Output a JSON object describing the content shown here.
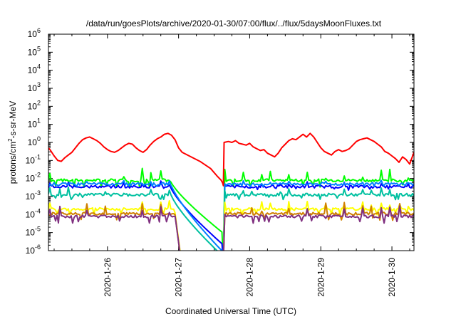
{
  "chart_data": {
    "type": "line",
    "title": "/data/run/goesPlots/archive/2020-01-30/07:00/flux/../flux/5daysMoonFluxes.txt",
    "xlabel": "Coordinated Universal Time (UTC)",
    "ylabel": {
      "pre": "protons/cm",
      "sup": "2",
      "post": "-s-sr-MeV"
    },
    "yscale": "log",
    "ylim_exponents": [
      -6,
      6
    ],
    "y_tick_exponents": [
      -6,
      -5,
      -4,
      -3,
      -2,
      -1,
      0,
      1,
      2,
      3,
      4,
      5,
      6
    ],
    "y_tick_base": "10",
    "xlim_days": [
      25.17,
      30.31
    ],
    "x_tick_labels": [
      {
        "day": 26,
        "label": "2020-1-26"
      },
      {
        "day": 27,
        "label": "2020-1-27"
      },
      {
        "day": 28,
        "label": "2020-1-28"
      },
      {
        "day": 29,
        "label": "2020-1-29"
      },
      {
        "day": 30,
        "label": "2020-1-30"
      }
    ],
    "grid": false,
    "legend": "none",
    "x_note": "x values are fractional days of January 2020 (UTC)",
    "series": [
      {
        "color": "#ff0000",
        "role": "red",
        "points": [
          [
            25.17,
            -0.3
          ],
          [
            25.2,
            -0.45
          ],
          [
            25.25,
            -0.75
          ],
          [
            25.3,
            -1.0
          ],
          [
            25.35,
            -1.05
          ],
          [
            25.4,
            -0.85
          ],
          [
            25.45,
            -0.7
          ],
          [
            25.5,
            -0.55
          ],
          [
            25.55,
            -0.3
          ],
          [
            25.6,
            -0.05
          ],
          [
            25.65,
            0.15
          ],
          [
            25.7,
            0.25
          ],
          [
            25.75,
            0.3
          ],
          [
            25.8,
            0.2
          ],
          [
            25.85,
            0.1
          ],
          [
            25.9,
            -0.05
          ],
          [
            25.95,
            -0.25
          ],
          [
            26.0,
            -0.4
          ],
          [
            26.05,
            -0.5
          ],
          [
            26.1,
            -0.55
          ],
          [
            26.15,
            -0.45
          ],
          [
            26.2,
            -0.3
          ],
          [
            26.25,
            -0.15
          ],
          [
            26.3,
            -0.05
          ],
          [
            26.35,
            -0.1
          ],
          [
            26.4,
            -0.3
          ],
          [
            26.45,
            -0.45
          ],
          [
            26.5,
            -0.55
          ],
          [
            26.55,
            -0.4
          ],
          [
            26.6,
            -0.15
          ],
          [
            26.65,
            0.05
          ],
          [
            26.7,
            0.2
          ],
          [
            26.75,
            0.3
          ],
          [
            26.8,
            0.45
          ],
          [
            26.85,
            0.5
          ],
          [
            26.9,
            0.4
          ],
          [
            26.95,
            0.15
          ],
          [
            27.0,
            -0.3
          ],
          [
            27.05,
            -0.55
          ],
          [
            27.15,
            -0.75
          ],
          [
            27.3,
            -1.05
          ],
          [
            27.45,
            -1.45
          ],
          [
            27.55,
            -1.9
          ],
          [
            27.6,
            -2.1
          ],
          [
            27.62,
            -2.25
          ],
          [
            27.63,
            -2.4
          ],
          [
            27.64,
            0.0
          ],
          [
            27.7,
            0.05
          ],
          [
            27.75,
            0.0
          ],
          [
            27.8,
            0.1
          ],
          [
            27.85,
            -0.05
          ],
          [
            27.9,
            -0.1
          ],
          [
            27.95,
            -0.15
          ],
          [
            28.0,
            -0.05
          ],
          [
            28.05,
            -0.25
          ],
          [
            28.1,
            -0.35
          ],
          [
            28.15,
            -0.45
          ],
          [
            28.2,
            -0.4
          ],
          [
            28.25,
            -0.6
          ],
          [
            28.3,
            -0.7
          ],
          [
            28.35,
            -0.8
          ],
          [
            28.4,
            -0.6
          ],
          [
            28.45,
            -0.3
          ],
          [
            28.5,
            -0.1
          ],
          [
            28.55,
            0.1
          ],
          [
            28.6,
            0.2
          ],
          [
            28.65,
            0.15
          ],
          [
            28.7,
            0.3
          ],
          [
            28.75,
            0.45
          ],
          [
            28.8,
            0.3
          ],
          [
            28.85,
            0.5
          ],
          [
            28.9,
            0.3
          ],
          [
            28.95,
            0.0
          ],
          [
            29.0,
            -0.3
          ],
          [
            29.05,
            -0.5
          ],
          [
            29.1,
            -0.6
          ],
          [
            29.15,
            -0.7
          ],
          [
            29.2,
            -0.5
          ],
          [
            29.25,
            -0.4
          ],
          [
            29.3,
            -0.5
          ],
          [
            29.35,
            -0.45
          ],
          [
            29.4,
            -0.35
          ],
          [
            29.45,
            -0.15
          ],
          [
            29.5,
            0.05
          ],
          [
            29.55,
            0.15
          ],
          [
            29.6,
            0.2
          ],
          [
            29.65,
            0.25
          ],
          [
            29.7,
            0.15
          ],
          [
            29.75,
            0.05
          ],
          [
            29.8,
            -0.1
          ],
          [
            29.85,
            -0.25
          ],
          [
            29.9,
            -0.5
          ],
          [
            29.95,
            -0.6
          ],
          [
            30.0,
            -0.75
          ],
          [
            30.05,
            -0.9
          ],
          [
            30.1,
            -1.1
          ],
          [
            30.15,
            -0.8
          ],
          [
            30.2,
            -0.95
          ],
          [
            30.25,
            -1.2
          ],
          [
            30.31,
            -0.55
          ]
        ]
      },
      {
        "color": "#00ff00",
        "role": "green",
        "base": -2.1,
        "decay_end": -5.0,
        "spike": 0.65
      },
      {
        "color": "#0000ff",
        "role": "blue",
        "base": -2.45,
        "decay_end": -5.65,
        "spike": 0.25
      },
      {
        "color": "#0080ff",
        "role": "lightblue",
        "base": -2.3,
        "decay_end": -6.05,
        "spike": 0.15
      },
      {
        "color": "#00c0a0",
        "role": "teal",
        "base": -2.9,
        "decay_end": -6.3,
        "spike": 0.4
      },
      {
        "color": "#ffff00",
        "role": "yellow",
        "base": -3.7,
        "decay_end": -6.5,
        "spike": 0.5
      },
      {
        "color": "#d08000",
        "role": "orange",
        "base": -3.95,
        "decay_end": -6.5,
        "spike": 0.6
      },
      {
        "color": "#803080",
        "role": "purple",
        "base": -4.1,
        "decay_end": -6.5,
        "spike": 0.6
      }
    ]
  }
}
